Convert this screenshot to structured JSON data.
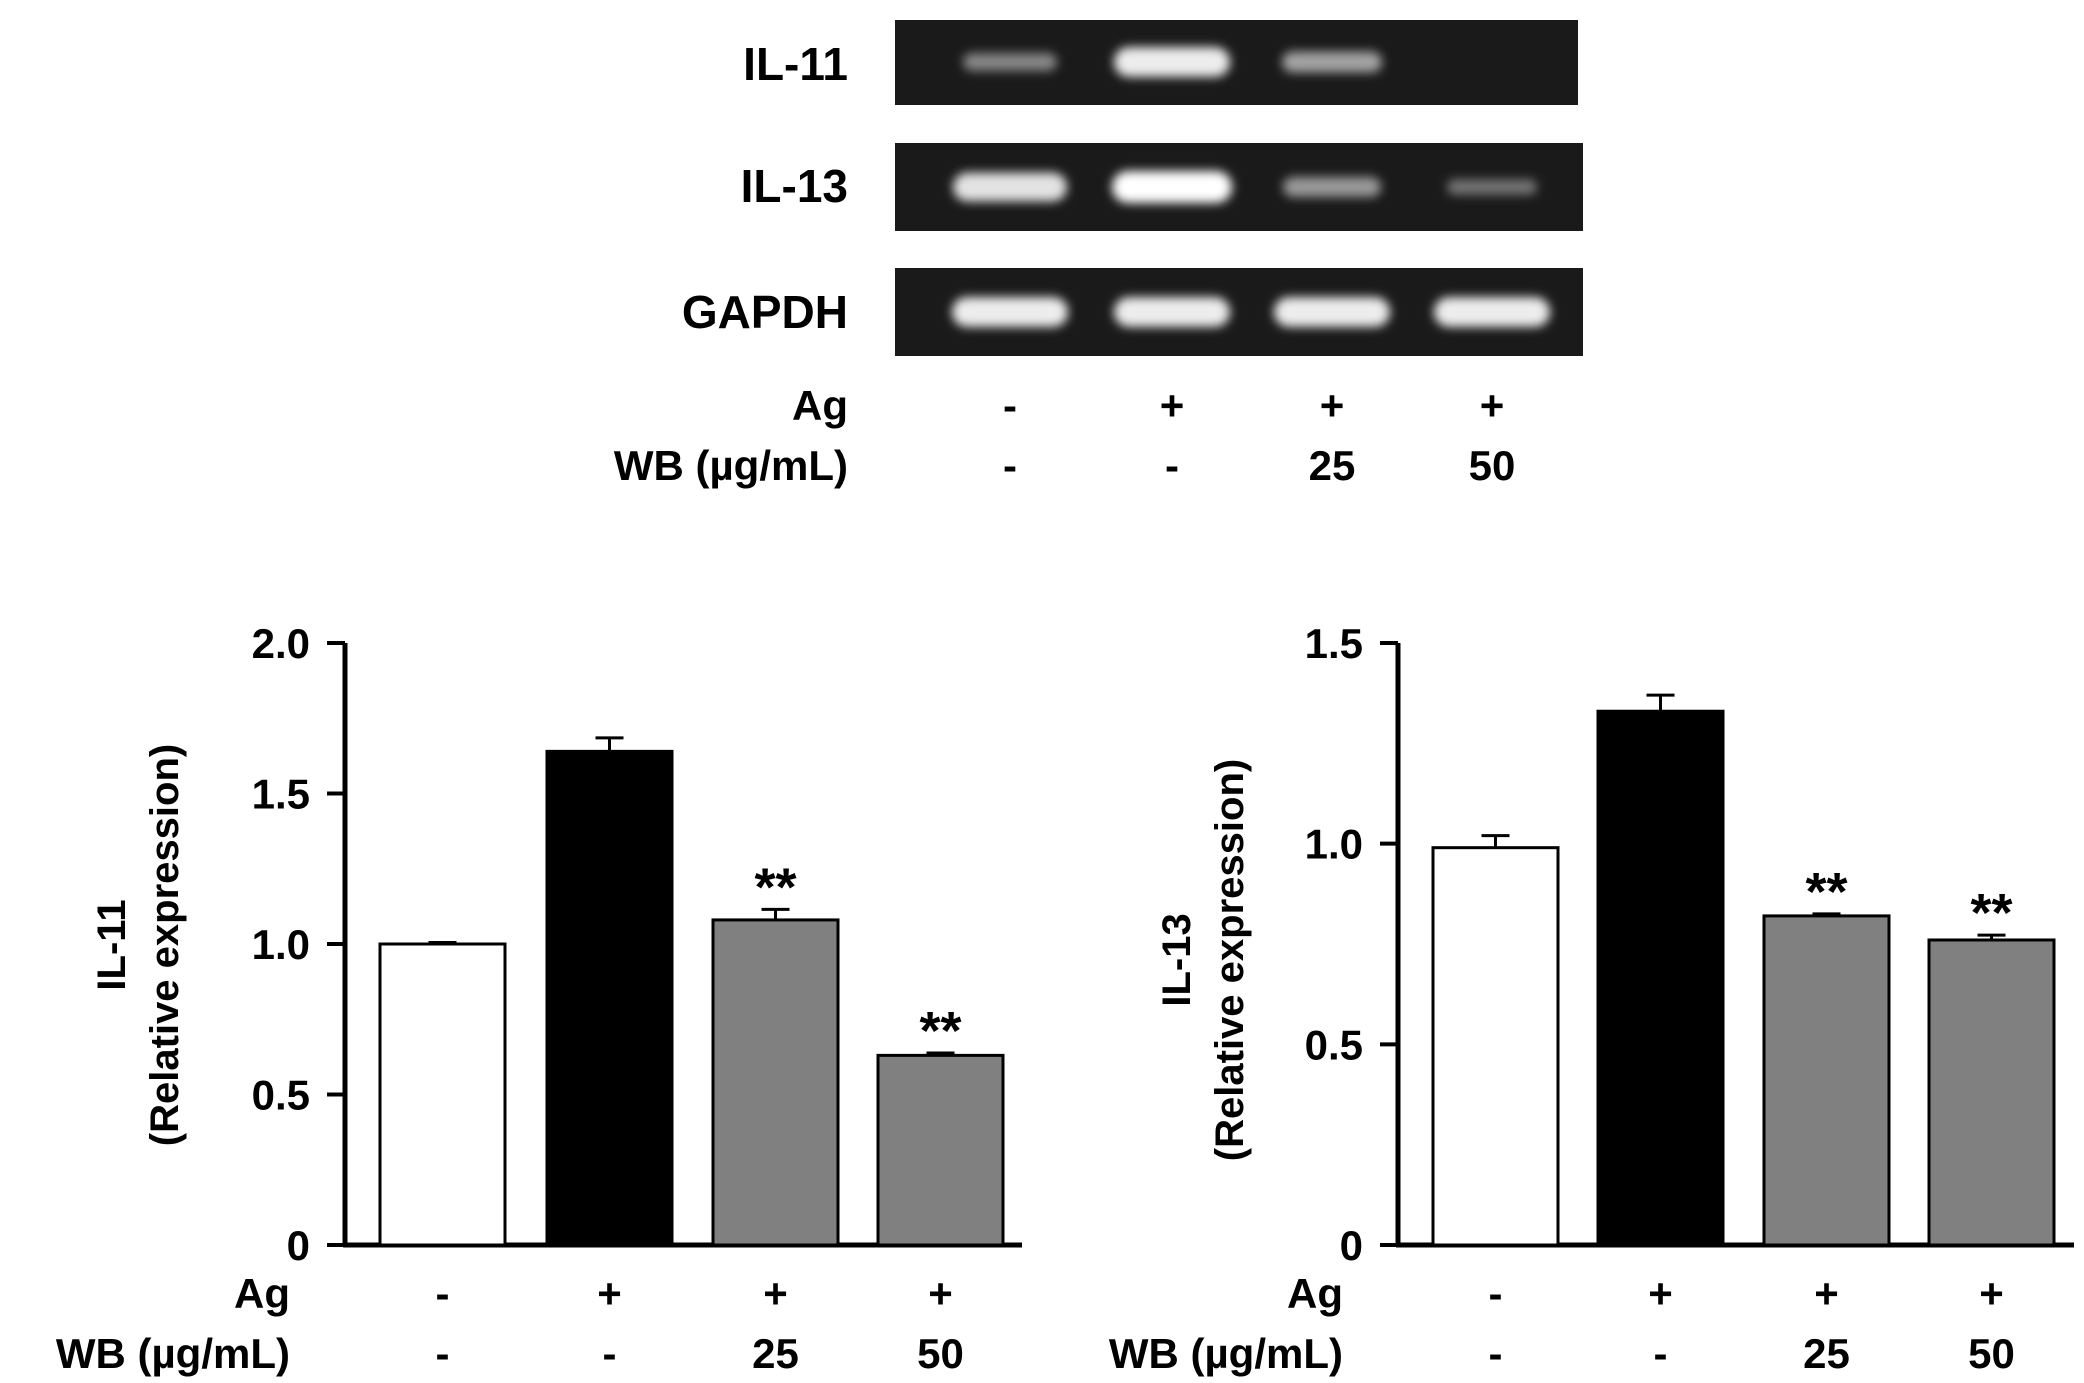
{
  "gel": {
    "rows": [
      {
        "label": "IL-11",
        "band_intensity": [
          0.35,
          0.9,
          0.5,
          0.0
        ]
      },
      {
        "label": "IL-13",
        "band_intensity": [
          0.85,
          1.0,
          0.45,
          0.25
        ]
      },
      {
        "label": "GAPDH",
        "band_intensity": [
          0.9,
          0.9,
          0.9,
          0.9
        ]
      }
    ],
    "conditions": [
      {
        "label": "Ag",
        "values": [
          "-",
          "+",
          "+",
          "+"
        ]
      },
      {
        "label": "WB (µg/mL)",
        "values": [
          "-",
          "-",
          "25",
          "50"
        ]
      }
    ]
  },
  "chart_data": [
    {
      "type": "bar",
      "ylabel_line1": "IL-11",
      "ylabel_line2": "(Relative expression)",
      "ylim": [
        0,
        2.0
      ],
      "yticks": [
        0,
        0.5,
        1.0,
        1.5,
        2.0
      ],
      "ytick_labels": [
        "0",
        "0.5",
        "1.0",
        "1.5",
        "2.0"
      ],
      "values": [
        1.0,
        1.64,
        1.08,
        0.63
      ],
      "errors": [
        0.005,
        0.045,
        0.035,
        0.008
      ],
      "bar_colors": [
        "#ffffff",
        "#000000",
        "#808080",
        "#808080"
      ],
      "significance": [
        "",
        "",
        "**",
        "**"
      ],
      "conditions": [
        {
          "label": "Ag",
          "values": [
            "-",
            "+",
            "+",
            "+"
          ]
        },
        {
          "label": "WB (µg/mL)",
          "values": [
            "-",
            "-",
            "25",
            "50"
          ]
        }
      ]
    },
    {
      "type": "bar",
      "ylabel_line1": "IL-13",
      "ylabel_line2": "(Relative expression)",
      "ylim": [
        0,
        1.5
      ],
      "yticks": [
        0,
        0.5,
        1.0,
        1.5
      ],
      "ytick_labels": [
        "0",
        "0.5",
        "1.0",
        "1.5"
      ],
      "values": [
        0.99,
        1.33,
        0.82,
        0.76
      ],
      "errors": [
        0.03,
        0.04,
        0.005,
        0.012
      ],
      "bar_colors": [
        "#ffffff",
        "#000000",
        "#808080",
        "#808080"
      ],
      "significance": [
        "",
        "",
        "**",
        "**"
      ],
      "conditions": [
        {
          "label": "Ag",
          "values": [
            "-",
            "+",
            "+",
            "+"
          ]
        },
        {
          "label": "WB (µg/mL)",
          "values": [
            "-",
            "-",
            "25",
            "50"
          ]
        }
      ]
    }
  ]
}
